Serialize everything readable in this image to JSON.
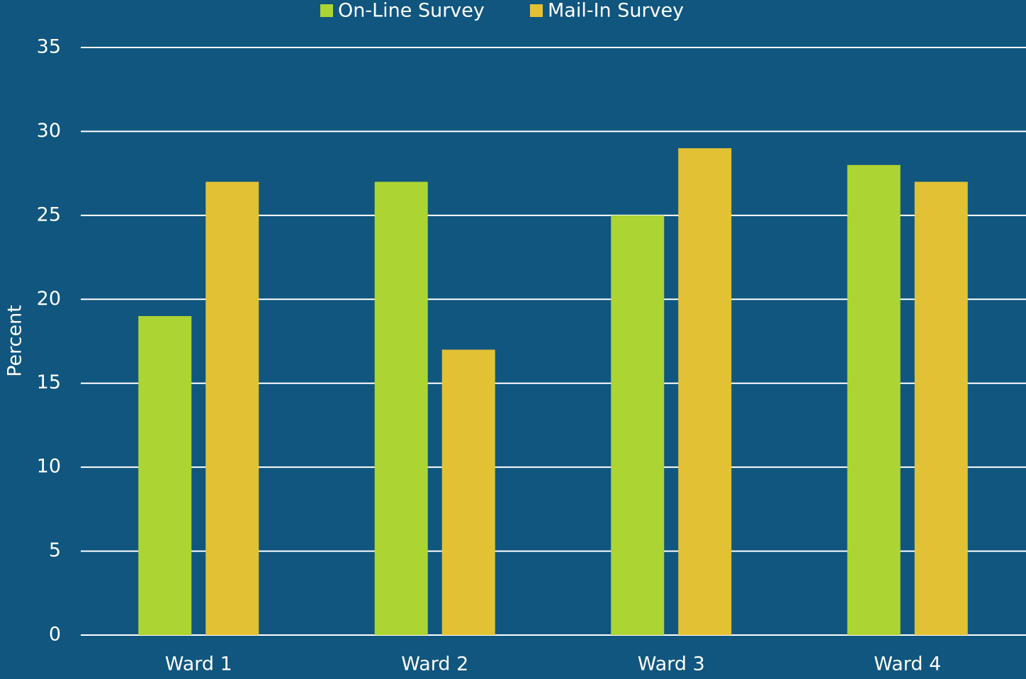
{
  "chart_data": {
    "type": "bar",
    "y_label": "Percent",
    "categories": [
      "Ward 1",
      "Ward 2",
      "Ward 3",
      "Ward 4"
    ],
    "series": [
      {
        "name": "On-Line Survey",
        "color": "#acd433",
        "values": [
          19,
          27,
          25,
          28
        ]
      },
      {
        "name": "Mail-In Survey",
        "color": "#e3c135",
        "values": [
          27,
          17,
          29,
          27
        ]
      }
    ],
    "ylim": [
      0,
      35
    ],
    "yticks": [
      0,
      5,
      10,
      15,
      20,
      25,
      30,
      35
    ],
    "grid": true,
    "legend": "top"
  }
}
